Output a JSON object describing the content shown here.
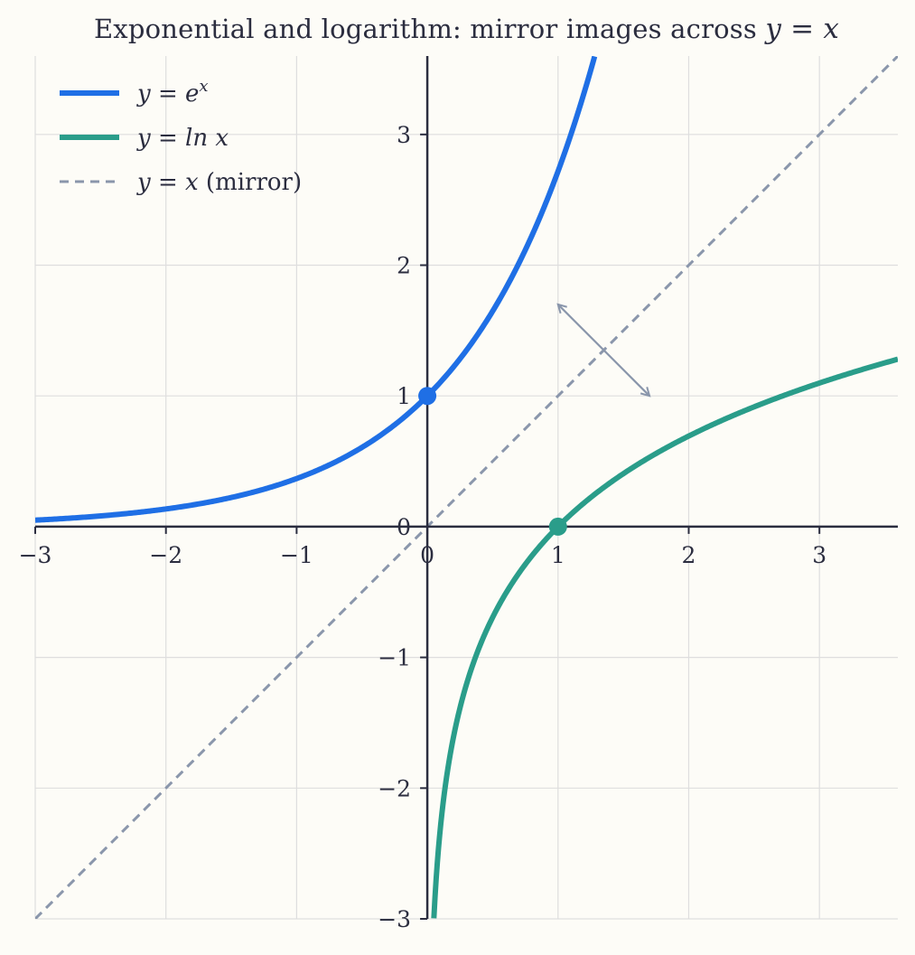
{
  "title": {
    "prefix": "Exponential and logarithm: mirror images across ",
    "math": "y = x"
  },
  "chart_data": {
    "type": "line",
    "title": "Exponential and logarithm: mirror images across y = x",
    "xlabel": "",
    "ylabel": "",
    "xlim": [
      -3,
      3.6
    ],
    "ylim": [
      -3,
      3.6
    ],
    "x_ticks": [
      -3,
      -2,
      -1,
      0,
      1,
      2,
      3
    ],
    "x_tick_labels": [
      "−3",
      "−2",
      "−1",
      "0",
      "1",
      "2",
      "3"
    ],
    "y_ticks": [
      -3,
      -2,
      -1,
      0,
      1,
      2,
      3
    ],
    "y_tick_labels": [
      "−3",
      "−2",
      "−1",
      "0",
      "1",
      "2",
      "3"
    ],
    "grid": true,
    "legend_position": "top-left",
    "series": [
      {
        "name": "y = e^x",
        "legend_text": "y = e",
        "legend_sup": "x",
        "function": "exp",
        "x_range": [
          -3,
          1.28
        ],
        "color": "#1f6fe5",
        "line_style": "solid",
        "highlight_point": {
          "x": 0,
          "y": 1
        }
      },
      {
        "name": "y = ln x",
        "legend_text": "y = ln x",
        "function": "ln",
        "x_range": [
          0.05,
          3.6
        ],
        "color": "#2a9d8a",
        "line_style": "solid",
        "highlight_point": {
          "x": 1,
          "y": 0
        }
      },
      {
        "name": "y = x (mirror)",
        "legend_text": "y = x",
        "legend_suffix": " (mirror)",
        "function": "identity",
        "x_range": [
          -3,
          3.6
        ],
        "color": "#8a96ab",
        "line_style": "dashed"
      }
    ],
    "annotations": [
      {
        "type": "double-arrow",
        "from": {
          "x": 1.7,
          "y": 1.0
        },
        "to": {
          "x": 1.0,
          "y": 1.7
        },
        "color": "#8a96ab"
      }
    ]
  }
}
